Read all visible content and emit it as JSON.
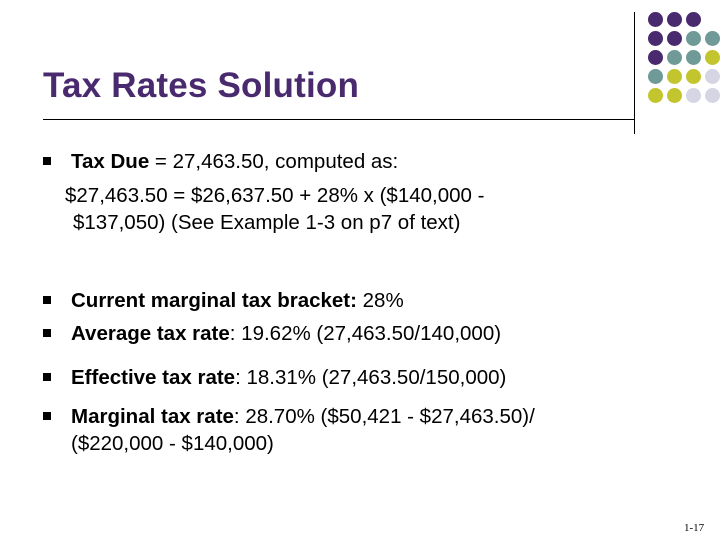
{
  "slide": {
    "title": "Tax Rates Solution",
    "page_number": "1-17"
  },
  "bullets": [
    {
      "bold": "Tax Due",
      "text": " = 27,463.50, computed as:"
    },
    {
      "bold": "Current marginal tax bracket:",
      "text": " 28%"
    },
    {
      "bold": "Average tax rate",
      "text": ": 19.62% (27,463.50/140,000)"
    },
    {
      "bold": "Effective tax rate",
      "text": ": 18.31% (27,463.50/150,000)"
    },
    {
      "bold": "Marginal tax rate",
      "text": ": 28.70% ($50,421 - $27,463.50)/"
    }
  ],
  "continuations": {
    "computation_line1": "$27,463.50 = $26,637.50 + 28% x ($140,000 -",
    "computation_line2": "$137,050) (See Example 1-3 on p7 of text)",
    "marginal_line2": "($220,000 - $140,000)"
  },
  "theme_colors": {
    "title": "#4a2a6e",
    "dot_purple": "#4a2a6e",
    "dot_teal": "#6f9a97",
    "dot_olive": "#c3c52e",
    "dot_light": "#d5d5e3"
  }
}
